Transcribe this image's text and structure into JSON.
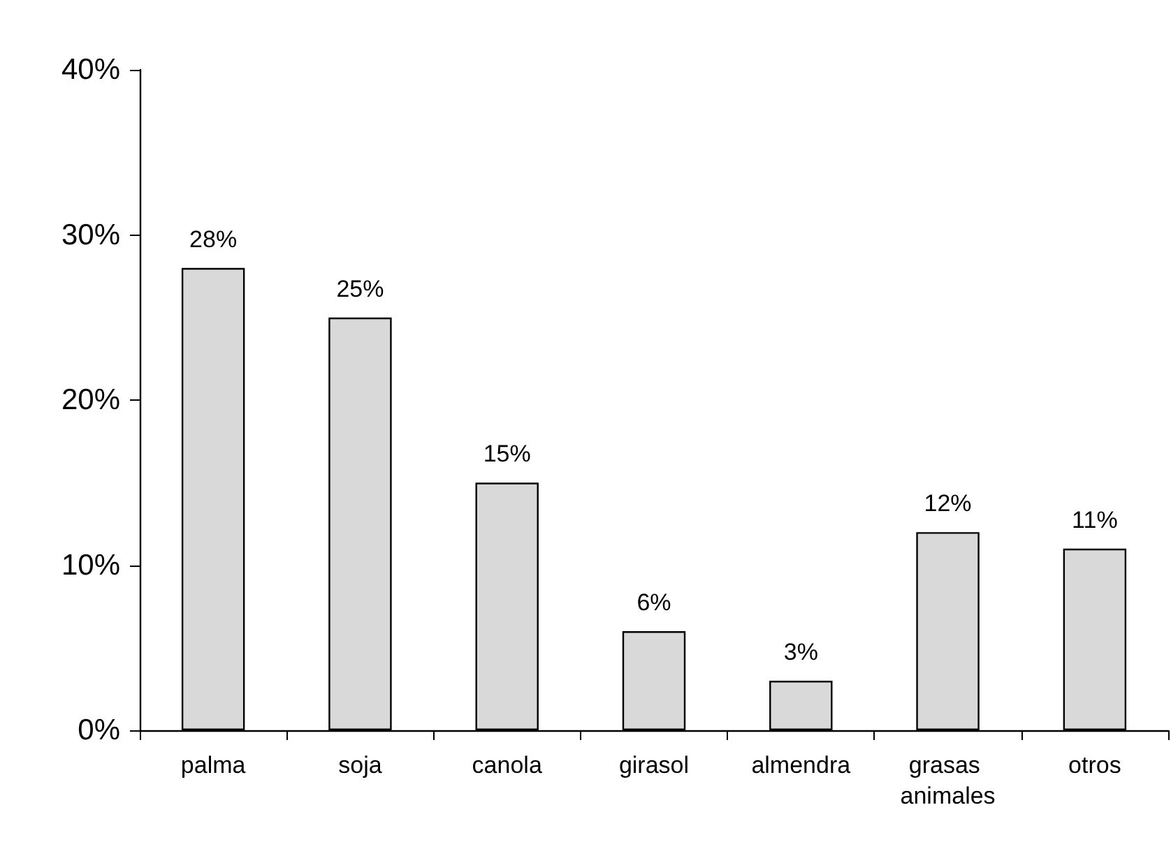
{
  "chart_data": {
    "type": "bar",
    "categories": [
      "palma",
      "soja",
      "canola",
      "girasol",
      "almendra",
      "grasas animales",
      "otros"
    ],
    "values": [
      28,
      25,
      15,
      6,
      3,
      12,
      11
    ],
    "value_labels": [
      "28%",
      "25%",
      "15%",
      "6%",
      "3%",
      "12%",
      "11%"
    ],
    "color": "#d9d9d9",
    "ylim": [
      0,
      40
    ],
    "yticks": [
      {
        "value": 0,
        "label": "0%"
      },
      {
        "value": 10,
        "label": "10%"
      },
      {
        "value": 20,
        "label": "20%"
      },
      {
        "value": 30,
        "label": "30%"
      },
      {
        "value": 40,
        "label": "40%"
      }
    ],
    "grid": false
  }
}
